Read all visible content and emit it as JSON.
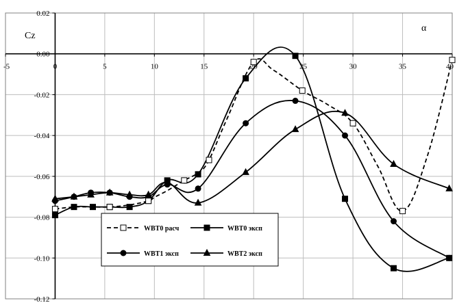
{
  "chart_data": {
    "type": "line",
    "title": "",
    "xlabel": "α",
    "ylabel": "Cz",
    "xlim": [
      -5,
      40
    ],
    "ylim": [
      -0.12,
      0.02
    ],
    "x_ticks": [
      "-5",
      "0",
      "5",
      "10",
      "15",
      "20",
      "25",
      "30",
      "35",
      "40"
    ],
    "y_ticks": [
      "0.02",
      "0.00",
      "-0.02",
      "-0.04",
      "-0.06",
      "-0.08",
      "-0.10",
      "-0.12"
    ],
    "grid": true,
    "legend_position": "bottom-left",
    "series": [
      {
        "name": "WBT0 расч",
        "marker": "open-square",
        "line": "dashed",
        "color": "#000000",
        "x": [
          0,
          1.9,
          3.8,
          5.5,
          7.5,
          9.4,
          10.1,
          11.3,
          13,
          14.5,
          15.5,
          17.3,
          20,
          22,
          24.9,
          27.5,
          30,
          32.5,
          35,
          37.5,
          40
        ],
        "y": [
          -0.076,
          -0.075,
          -0.075,
          -0.075,
          -0.074,
          -0.072,
          -0.07,
          -0.067,
          -0.062,
          -0.058,
          -0.052,
          -0.032,
          -0.004,
          -0.008,
          -0.018,
          -0.025,
          -0.034,
          -0.055,
          -0.077,
          -0.05,
          -0.003
        ]
      },
      {
        "name": "WBT0 эксп",
        "marker": "filled-square",
        "line": "solid",
        "color": "#000000",
        "x": [
          0,
          1.9,
          3.8,
          5.5,
          7.5,
          9.4,
          11.3,
          14.4,
          19.2,
          24.2,
          29.2,
          34.1,
          39.7
        ],
        "y": [
          -0.079,
          -0.075,
          -0.075,
          -0.075,
          -0.075,
          -0.072,
          -0.062,
          -0.059,
          -0.012,
          -0.001,
          -0.071,
          -0.105,
          -0.1
        ]
      },
      {
        "name": "WBT1 эксп",
        "marker": "filled-circle",
        "line": "solid",
        "color": "#000000",
        "x": [
          0,
          1.9,
          3.6,
          5.5,
          7.5,
          9.4,
          11.3,
          14.4,
          19.2,
          24.2,
          29.2,
          34.1,
          39.7
        ],
        "y": [
          -0.072,
          -0.07,
          -0.068,
          -0.068,
          -0.07,
          -0.07,
          -0.064,
          -0.066,
          -0.034,
          -0.023,
          -0.04,
          -0.082,
          -0.1
        ]
      },
      {
        "name": "WBT2 эксп",
        "marker": "filled-triangle",
        "line": "solid",
        "color": "#000000",
        "x": [
          0,
          1.9,
          3.6,
          5.5,
          7.5,
          9.4,
          11.3,
          14.4,
          19.2,
          24.2,
          29.2,
          34.1,
          39.7
        ],
        "y": [
          -0.071,
          -0.07,
          -0.069,
          -0.068,
          -0.069,
          -0.069,
          -0.063,
          -0.073,
          -0.058,
          -0.037,
          -0.029,
          -0.054,
          -0.066
        ]
      }
    ]
  }
}
